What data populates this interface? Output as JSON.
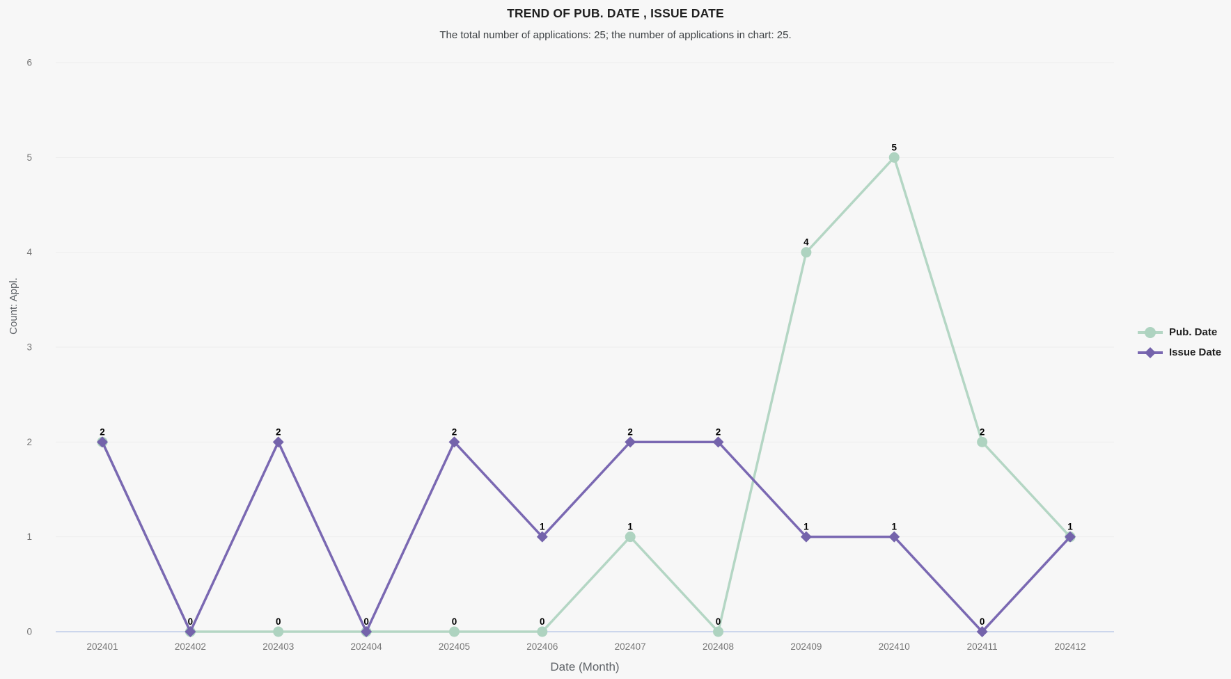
{
  "chart_data": {
    "type": "line",
    "title": "TREND OF PUB. DATE , ISSUE DATE",
    "subtitle": "The total number of applications: 25; the number of applications in chart: 25.",
    "xlabel": "Date (Month)",
    "ylabel": "Count: Appl.",
    "categories": [
      "202401",
      "202402",
      "202403",
      "202404",
      "202405",
      "202406",
      "202407",
      "202408",
      "202409",
      "202410",
      "202411",
      "202412"
    ],
    "yticks": [
      0,
      1,
      2,
      3,
      4,
      5,
      6
    ],
    "ylim": [
      0,
      6
    ],
    "grid": true,
    "legend_position": "right",
    "data_labels_shown": true,
    "series": [
      {
        "name": "Pub. Date",
        "marker": "circle",
        "color": "#b4d6c4",
        "marker_color": "#aed3c0",
        "values": [
          2,
          0,
          0,
          0,
          0,
          0,
          1,
          0,
          4,
          5,
          2,
          1
        ]
      },
      {
        "name": "Issue Date",
        "marker": "diamond",
        "color": "#7a68b2",
        "marker_color": "#7463ab",
        "values": [
          2,
          0,
          2,
          0,
          2,
          1,
          2,
          2,
          1,
          1,
          0,
          1
        ]
      }
    ],
    "style": {
      "background": "#f7f7f7",
      "gridline_color": "#ededed",
      "baseline_color": "#ccd6ec",
      "tick_color": "#757575",
      "axis_title_color": "#5f6368",
      "data_label_color": "#000000"
    }
  }
}
